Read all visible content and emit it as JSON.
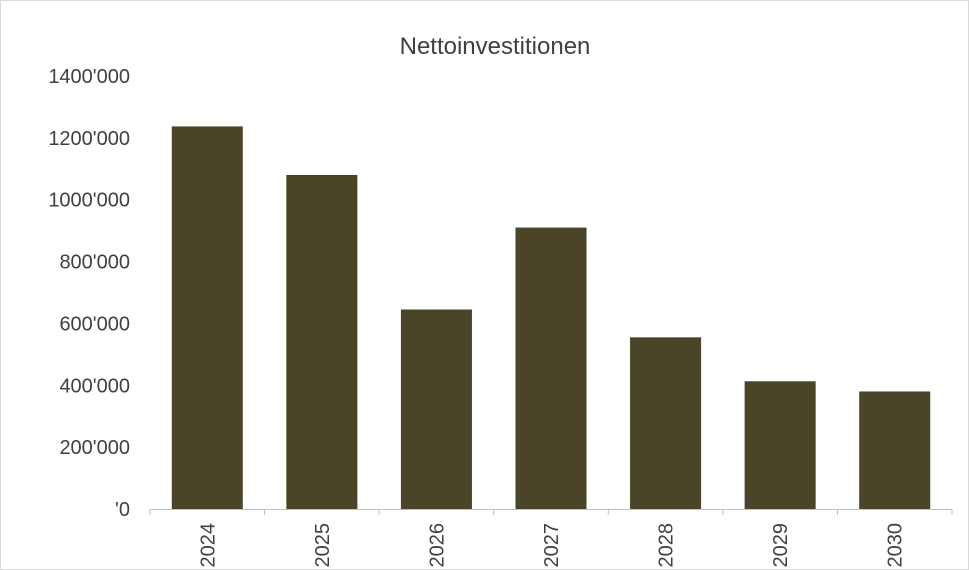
{
  "chart_data": {
    "type": "bar",
    "title": "Nettoinvestitionen",
    "xlabel": "",
    "ylabel": "",
    "categories": [
      "2024",
      "2025",
      "2026",
      "2027",
      "2028",
      "2029",
      "2030"
    ],
    "values": [
      1237000,
      1080000,
      645000,
      910000,
      555000,
      413000,
      380000
    ],
    "ylim": [
      0,
      1400000
    ],
    "y_ticks": [
      0,
      200000,
      400000,
      600000,
      800000,
      1000000,
      1200000,
      1400000
    ],
    "y_tick_labels": [
      "'0",
      "200'000",
      "400'000",
      "600'000",
      "800'000",
      "1000'000",
      "1200'000",
      "1400'000"
    ],
    "grid": false,
    "legend": "none",
    "bar_color": "#4a4428",
    "x_tick_label_rotation": "vertical"
  }
}
